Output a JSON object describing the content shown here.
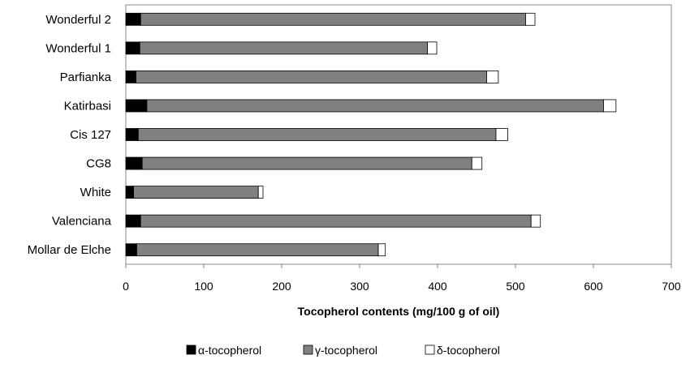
{
  "chart_data": {
    "type": "bar",
    "orientation": "horizontal",
    "stacked": true,
    "categories": [
      "Wonderful 2",
      "Wonderful 1",
      "Parfianka",
      "Katirbasi",
      "Cis 127",
      "CG8",
      "White",
      "Valenciana",
      "Mollar de Elche"
    ],
    "series": [
      {
        "name": "α-tocopherol",
        "color": "#000000",
        "values": [
          19,
          18,
          13,
          27,
          16,
          21,
          10,
          19,
          14
        ]
      },
      {
        "name": "γ-tocopherol",
        "color": "#808080",
        "values": [
          494,
          369,
          450,
          586,
          459,
          423,
          160,
          501,
          310
        ]
      },
      {
        "name": "δ-tocopherol",
        "color": "#ffffff",
        "values": [
          12,
          12,
          15,
          16,
          15,
          13,
          6,
          12,
          9
        ]
      }
    ],
    "xlabel": "Tocopherol contents (mg/100 g of oil)",
    "ylabel": "",
    "xlim": [
      0,
      700
    ],
    "xticks": [
      0,
      100,
      200,
      300,
      400,
      500,
      600,
      700
    ],
    "grid": false,
    "legend_position": "bottom"
  }
}
